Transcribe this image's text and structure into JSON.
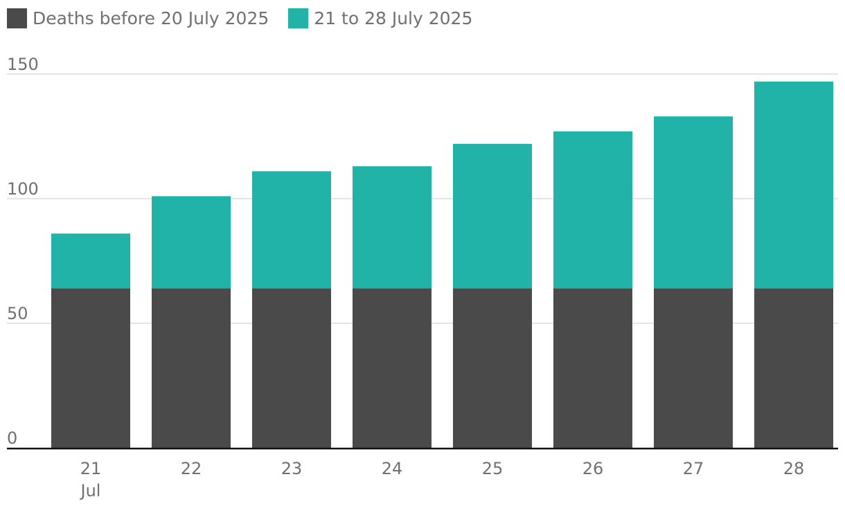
{
  "chart_data": {
    "type": "bar",
    "stacked": true,
    "categories": [
      "21",
      "22",
      "23",
      "24",
      "25",
      "26",
      "27",
      "28"
    ],
    "x_sublabel": "Jul",
    "series": [
      {
        "name": "Deaths before 20 July 2025",
        "color": "#4a4a4a",
        "values": [
          64,
          64,
          64,
          64,
          64,
          64,
          64,
          64
        ]
      },
      {
        "name": "21 to 28 July 2025",
        "color": "#22b3a8",
        "values": [
          22,
          37,
          47,
          49,
          58,
          63,
          69,
          83
        ]
      }
    ],
    "yticks": [
      0,
      50,
      100,
      150
    ],
    "ylim": [
      0,
      150
    ],
    "grid": true,
    "legend_position": "top-left"
  }
}
